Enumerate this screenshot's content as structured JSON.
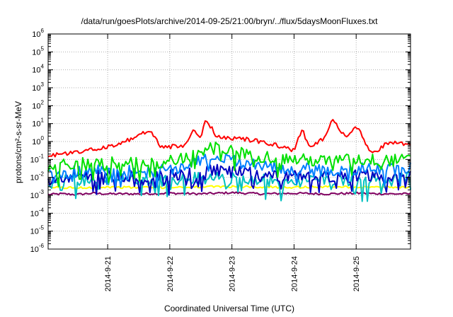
{
  "chart_data": {
    "type": "line",
    "title": "/data/run/goesPlots/archive/2014-09-25/21:00/bryn/../flux/5daysMoonFluxes.txt",
    "xlabel": "Coordinated Universal Time (UTC)",
    "ylabel": "protons/cm²-s-sr-MeV",
    "yscale": "log",
    "ylim": [
      1e-06,
      1000000.0
    ],
    "xlim": [
      "2014-09-20T01:00",
      "2014-09-25T21:00"
    ],
    "x_ticks": [
      "2014-9-21",
      "2014-9-22",
      "2014-9-23",
      "2014-9-24",
      "2014-9-25"
    ],
    "y_ticks": [
      {
        "base": "10",
        "exp": "-6"
      },
      {
        "base": "10",
        "exp": "-5"
      },
      {
        "base": "10",
        "exp": "-4"
      },
      {
        "base": "10",
        "exp": "-3"
      },
      {
        "base": "10",
        "exp": "-2"
      },
      {
        "base": "10",
        "exp": "-1"
      },
      {
        "base": "10",
        "exp": "0"
      },
      {
        "base": "10",
        "exp": "1"
      },
      {
        "base": "10",
        "exp": "2"
      },
      {
        "base": "10",
        "exp": "3"
      },
      {
        "base": "10",
        "exp": "4"
      },
      {
        "base": "10",
        "exp": "5"
      },
      {
        "base": "10",
        "exp": "6"
      }
    ],
    "grid": true,
    "series": [
      {
        "color": "#800060",
        "x": [
          "2014-09-20T01:00",
          "2014-09-20T06:00",
          "2014-09-20T12:00",
          "2014-09-20T18:00",
          "2014-09-21T00:00",
          "2014-09-21T12:00",
          "2014-09-22T00:00",
          "2014-09-22T12:00",
          "2014-09-23T00:00",
          "2014-09-23T12:00",
          "2014-09-24T00:00",
          "2014-09-24T12:00",
          "2014-09-25T00:00",
          "2014-09-25T12:00",
          "2014-09-25T21:00"
        ],
        "values": [
          0.0011,
          0.0012,
          0.0011,
          0.0013,
          0.0012,
          0.0012,
          0.0013,
          0.0012,
          0.0014,
          0.0012,
          0.0013,
          0.0012,
          0.0013,
          0.0012,
          0.0012
        ]
      },
      {
        "color": "#ffff00",
        "x": [
          "2014-09-20T01:00",
          "2014-09-20T12:00",
          "2014-09-21T00:00",
          "2014-09-21T12:00",
          "2014-09-22T00:00",
          "2014-09-22T12:00",
          "2014-09-23T00:00",
          "2014-09-23T12:00",
          "2014-09-24T00:00",
          "2014-09-24T12:00",
          "2014-09-25T00:00",
          "2014-09-25T12:00",
          "2014-09-25T21:00"
        ],
        "values": [
          0.0028,
          0.0026,
          0.0029,
          0.0027,
          0.0028,
          0.0029,
          0.0031,
          0.0029,
          0.0028,
          0.003,
          0.0029,
          0.0028,
          0.0029
        ]
      },
      {
        "color": "#00c0c0",
        "x": [
          "2014-09-20T01:00",
          "2014-09-20T12:00",
          "2014-09-21T00:00",
          "2014-09-21T12:00",
          "2014-09-22T00:00",
          "2014-09-22T12:00",
          "2014-09-23T00:00",
          "2014-09-23T12:00",
          "2014-09-24T00:00",
          "2014-09-24T12:00",
          "2014-09-25T00:00",
          "2014-09-25T12:00",
          "2014-09-25T21:00"
        ],
        "values": [
          0.005,
          0.007,
          0.008,
          0.006,
          0.007,
          0.009,
          0.008,
          0.007,
          0.006,
          0.008,
          0.007,
          0.008,
          0.009
        ]
      },
      {
        "color": "#0000c0",
        "x": [
          "2014-09-20T01:00",
          "2014-09-20T12:00",
          "2014-09-21T00:00",
          "2014-09-21T12:00",
          "2014-09-22T00:00",
          "2014-09-22T06:00",
          "2014-09-22T12:00",
          "2014-09-22T18:00",
          "2014-09-23T00:00",
          "2014-09-23T12:00",
          "2014-09-24T00:00",
          "2014-09-24T12:00",
          "2014-09-25T00:00",
          "2014-09-25T12:00",
          "2014-09-25T21:00"
        ],
        "values": [
          0.008,
          0.01,
          0.012,
          0.011,
          0.013,
          0.015,
          0.02,
          0.025,
          0.02,
          0.015,
          0.012,
          0.011,
          0.012,
          0.013,
          0.014
        ]
      },
      {
        "color": "#0080ff",
        "x": [
          "2014-09-20T01:00",
          "2014-09-20T12:00",
          "2014-09-21T00:00",
          "2014-09-21T12:00",
          "2014-09-22T00:00",
          "2014-09-22T06:00",
          "2014-09-22T12:00",
          "2014-09-22T18:00",
          "2014-09-23T00:00",
          "2014-09-23T06:00",
          "2014-09-23T12:00",
          "2014-09-24T00:00",
          "2014-09-24T12:00",
          "2014-09-25T00:00",
          "2014-09-25T12:00",
          "2014-09-25T21:00"
        ],
        "values": [
          0.015,
          0.02,
          0.025,
          0.02,
          0.025,
          0.04,
          0.09,
          0.12,
          0.08,
          0.06,
          0.04,
          0.03,
          0.025,
          0.03,
          0.028,
          0.03
        ]
      },
      {
        "color": "#00e000",
        "x": [
          "2014-09-20T01:00",
          "2014-09-20T12:00",
          "2014-09-21T00:00",
          "2014-09-21T12:00",
          "2014-09-22T00:00",
          "2014-09-22T06:00",
          "2014-09-22T12:00",
          "2014-09-22T18:00",
          "2014-09-23T00:00",
          "2014-09-23T06:00",
          "2014-09-23T12:00",
          "2014-09-24T00:00",
          "2014-09-24T12:00",
          "2014-09-25T00:00",
          "2014-09-25T12:00",
          "2014-09-25T21:00"
        ],
        "values": [
          0.04,
          0.06,
          0.07,
          0.06,
          0.08,
          0.15,
          0.35,
          0.45,
          0.3,
          0.2,
          0.15,
          0.1,
          0.08,
          0.1,
          0.09,
          0.09
        ]
      },
      {
        "color": "#ff0000",
        "x": [
          "2014-09-20T01:00",
          "2014-09-20T06:00",
          "2014-09-20T12:00",
          "2014-09-20T18:00",
          "2014-09-21T00:00",
          "2014-09-21T06:00",
          "2014-09-21T12:00",
          "2014-09-21T16:00",
          "2014-09-21T20:00",
          "2014-09-22T00:00",
          "2014-09-22T06:00",
          "2014-09-22T09:00",
          "2014-09-22T12:00",
          "2014-09-22T14:00",
          "2014-09-22T18:00",
          "2014-09-23T00:00",
          "2014-09-23T06:00",
          "2014-09-23T12:00",
          "2014-09-23T18:00",
          "2014-09-24T00:00",
          "2014-09-24T03:00",
          "2014-09-24T06:00",
          "2014-09-24T12:00",
          "2014-09-24T15:00",
          "2014-09-24T20:00",
          "2014-09-25T00:00",
          "2014-09-25T06:00",
          "2014-09-25T12:00",
          "2014-09-25T21:00"
        ],
        "values": [
          0.15,
          0.2,
          0.25,
          0.35,
          0.5,
          0.9,
          2.0,
          5.0,
          0.6,
          0.5,
          0.6,
          5.0,
          1.5,
          18.0,
          2.0,
          1.5,
          1.3,
          0.9,
          0.6,
          0.3,
          5.0,
          0.5,
          1.5,
          20.0,
          1.5,
          8.0,
          0.2,
          0.8,
          0.8
        ]
      }
    ]
  }
}
